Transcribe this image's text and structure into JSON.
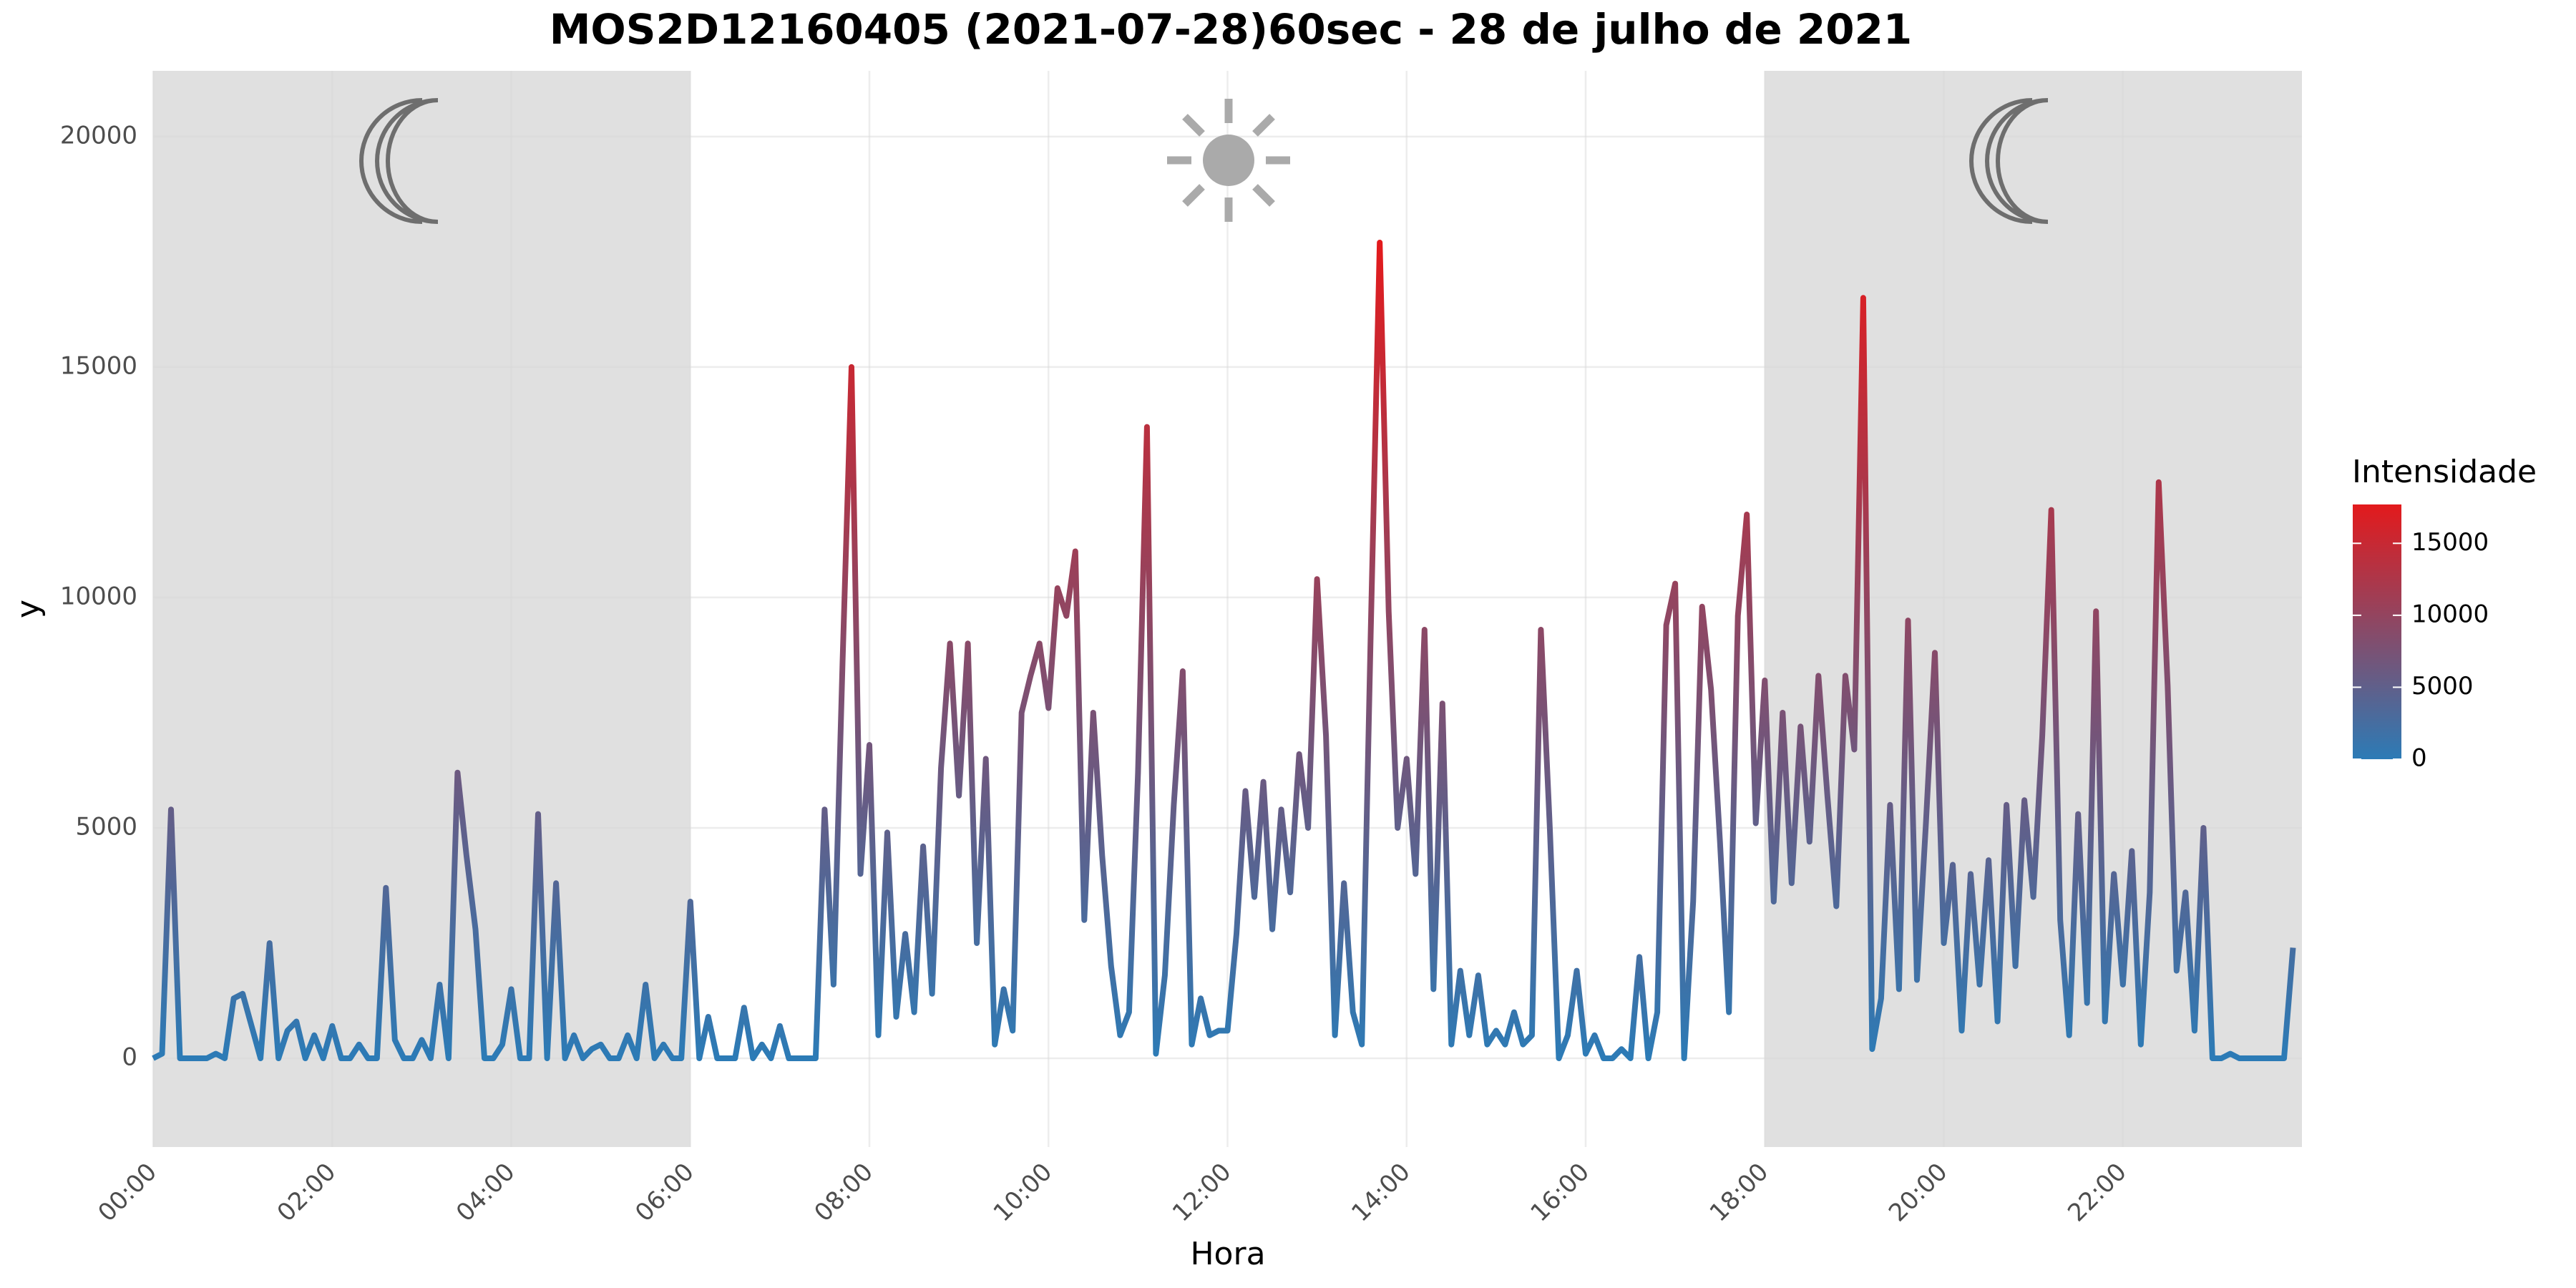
{
  "chart_data": {
    "type": "line",
    "title": "MOS2D12160405 (2021-07-28)60sec - 28 de julho de 2021",
    "x_label": "Hora",
    "y_label": "y",
    "legend_title": "Intensidade",
    "color_low": "#2c7bb6",
    "color_high": "#e31a1c",
    "legend_ticks": [
      0,
      5000,
      10000,
      15000
    ],
    "night_periods": [
      [
        0,
        6
      ],
      [
        18,
        24
      ]
    ],
    "grid": true,
    "xlim": [
      0,
      24
    ],
    "ylim": [
      -1925,
      21426
    ],
    "xticks": [
      {
        "value": 0,
        "label": "00:00"
      },
      {
        "value": 2,
        "label": "02:00"
      },
      {
        "value": 4,
        "label": "04:00"
      },
      {
        "value": 6,
        "label": "06:00"
      },
      {
        "value": 8,
        "label": "08:00"
      },
      {
        "value": 10,
        "label": "10:00"
      },
      {
        "value": 12,
        "label": "12:00"
      },
      {
        "value": 14,
        "label": "14:00"
      },
      {
        "value": 16,
        "label": "16:00"
      },
      {
        "value": 18,
        "label": "18:00"
      },
      {
        "value": 20,
        "label": "20:00"
      },
      {
        "value": 22,
        "label": "22:00"
      }
    ],
    "yticks": [
      0,
      5000,
      10000,
      15000,
      20000
    ],
    "x": [
      0,
      0.1,
      0.2,
      0.3,
      0.4,
      0.5,
      0.6,
      0.7,
      0.8,
      0.9,
      1,
      1.1,
      1.2,
      1.3,
      1.4,
      1.5,
      1.6,
      1.7,
      1.8,
      1.9,
      2,
      2.1,
      2.2,
      2.3,
      2.4,
      2.5,
      2.6,
      2.7,
      2.8,
      2.9,
      3,
      3.1,
      3.2,
      3.3,
      3.4,
      3.5,
      3.6,
      3.7,
      3.8,
      3.9,
      4,
      4.1,
      4.2,
      4.3,
      4.4,
      4.5,
      4.6,
      4.7,
      4.8,
      4.9,
      5,
      5.1,
      5.2,
      5.3,
      5.4,
      5.5,
      5.6,
      5.7,
      5.8,
      5.9,
      6,
      6.1,
      6.2,
      6.3,
      6.4,
      6.5,
      6.6,
      6.7,
      6.8,
      6.9,
      7,
      7.1,
      7.2,
      7.3,
      7.4,
      7.5,
      7.6,
      7.7,
      7.8,
      7.9,
      8,
      8.1,
      8.2,
      8.3,
      8.4,
      8.5,
      8.6,
      8.7,
      8.8,
      8.9,
      9,
      9.1,
      9.2,
      9.3,
      9.4,
      9.5,
      9.6,
      9.7,
      9.8,
      9.9,
      10,
      10.1,
      10.2,
      10.3,
      10.4,
      10.5,
      10.6,
      10.7,
      10.8,
      10.9,
      11,
      11.1,
      11.2,
      11.3,
      11.4,
      11.5,
      11.6,
      11.7,
      11.8,
      11.9,
      12,
      12.1,
      12.2,
      12.3,
      12.4,
      12.5,
      12.6,
      12.7,
      12.8,
      12.9,
      13,
      13.1,
      13.2,
      13.3,
      13.4,
      13.5,
      13.6,
      13.7,
      13.8,
      13.9,
      14,
      14.1,
      14.2,
      14.3,
      14.4,
      14.5,
      14.6,
      14.7,
      14.8,
      14.9,
      15,
      15.1,
      15.2,
      15.3,
      15.4,
      15.5,
      15.6,
      15.7,
      15.8,
      15.9,
      16,
      16.1,
      16.2,
      16.3,
      16.4,
      16.5,
      16.6,
      16.7,
      16.8,
      16.9,
      17,
      17.1,
      17.2,
      17.3,
      17.4,
      17.5,
      17.6,
      17.7,
      17.8,
      17.9,
      18,
      18.1,
      18.2,
      18.3,
      18.4,
      18.5,
      18.6,
      18.7,
      18.8,
      18.9,
      19,
      19.1,
      19.2,
      19.3,
      19.4,
      19.5,
      19.6,
      19.7,
      19.8,
      19.9,
      20,
      20.1,
      20.2,
      20.3,
      20.4,
      20.5,
      20.6,
      20.7,
      20.8,
      20.9,
      21,
      21.1,
      21.2,
      21.3,
      21.4,
      21.5,
      21.6,
      21.7,
      21.8,
      21.9,
      22,
      22.1,
      22.2,
      22.3,
      22.4,
      22.5,
      22.6,
      22.7,
      22.8,
      22.9,
      23,
      23.1,
      23.2,
      23.3,
      23.4,
      23.5,
      23.6,
      23.7,
      23.8,
      23.9
    ],
    "values": [
      0,
      100,
      5400,
      0,
      0,
      0,
      0,
      100,
      0,
      1300,
      1400,
      700,
      0,
      2500,
      0,
      600,
      800,
      0,
      500,
      0,
      700,
      0,
      0,
      300,
      0,
      0,
      3700,
      400,
      0,
      0,
      400,
      0,
      1600,
      0,
      6200,
      4400,
      2800,
      0,
      0,
      300,
      1500,
      0,
      0,
      5300,
      0,
      3800,
      0,
      500,
      0,
      200,
      300,
      0,
      0,
      500,
      0,
      1600,
      0,
      300,
      0,
      0,
      3400,
      0,
      900,
      0,
      0,
      0,
      1100,
      0,
      300,
      0,
      700,
      0,
      0,
      0,
      0,
      5400,
      1600,
      8600,
      15000,
      4000,
      6800,
      500,
      4900,
      900,
      2700,
      1000,
      4600,
      1400,
      6300,
      9000,
      5700,
      9000,
      2500,
      6500,
      300,
      1500,
      600,
      7500,
      8300,
      9000,
      7600,
      10200,
      9600,
      11000,
      3000,
      7500,
      4400,
      2000,
      500,
      1000,
      6200,
      13700,
      100,
      1800,
      5500,
      8400,
      300,
      1300,
      500,
      600,
      600,
      2700,
      5800,
      3500,
      6000,
      2800,
      5400,
      3600,
      6600,
      5000,
      10400,
      7000,
      500,
      3800,
      1000,
      300,
      9300,
      17700,
      9700,
      5000,
      6500,
      4000,
      9300,
      1500,
      7700,
      300,
      1900,
      500,
      1800,
      300,
      600,
      300,
      1000,
      300,
      500,
      9300,
      5000,
      0,
      500,
      1900,
      100,
      500,
      0,
      0,
      200,
      0,
      2200,
      0,
      1000,
      9400,
      10300,
      0,
      3400,
      9800,
      8000,
      4700,
      1000,
      9600,
      11800,
      5100,
      8200,
      3400,
      7500,
      3800,
      7200,
      4700,
      8300,
      5700,
      3300,
      8300,
      6700,
      16500,
      200,
      1300,
      5500,
      1500,
      9500,
      1700,
      5100,
      8800,
      2500,
      4200,
      600,
      4000,
      1600,
      4300,
      800,
      5500,
      2000,
      5600,
      3500,
      7000,
      11900,
      3000,
      500,
      5300,
      1200,
      9700,
      800,
      4000,
      1600,
      4500,
      300,
      3600,
      12500,
      8100,
      1900,
      3600,
      600,
      5000,
      0,
      0,
      100,
      0,
      0,
      0,
      0,
      0,
      0,
      2400
    ]
  }
}
